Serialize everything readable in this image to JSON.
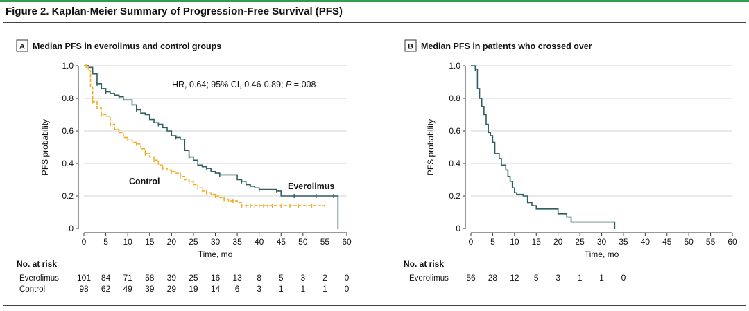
{
  "figure_title": "Figure 2. Kaplan-Meier Summary of Progression-Free Survival (PFS)",
  "colors": {
    "header_green": "#2f9e4f",
    "everolimus": "#2e5f5e",
    "control": "#f0ad28",
    "grid": "#d3d3d3"
  },
  "chart_data": [
    {
      "type": "line",
      "panel_letter": "A",
      "title": "Median PFS in everolimus and control groups",
      "xlabel": "Time, mo",
      "ylabel": "PFS probability",
      "xlim": [
        0,
        60
      ],
      "ylim": [
        0,
        1.0
      ],
      "x_ticks": [
        0,
        5,
        10,
        15,
        20,
        25,
        30,
        35,
        40,
        45,
        50,
        55,
        60
      ],
      "x_tick_labels": [
        "0",
        "5",
        "10",
        "15",
        "20",
        "25",
        "30",
        "35",
        "40",
        "45",
        "50",
        "55",
        "60"
      ],
      "y_ticks": [
        0,
        0.2,
        0.4,
        0.6,
        0.8,
        1.0
      ],
      "y_tick_labels": [
        "0",
        "0.2",
        "0.4",
        "0.6",
        "0.8",
        "1.0"
      ],
      "grid": true,
      "annotation": {
        "prefix": "HR, 0.64; 95% CI, 0.46-0.89; ",
        "p_label": "P",
        "suffix": " =.008"
      },
      "series": [
        {
          "name": "Everolimus",
          "style": "solid",
          "x": [
            0,
            1,
            2,
            3,
            4,
            5,
            6,
            7,
            8,
            9,
            11,
            12,
            13,
            14,
            15,
            16,
            17,
            18,
            19,
            20,
            21,
            22,
            23,
            24,
            25,
            26,
            27,
            28,
            29,
            30,
            31,
            35,
            36,
            37,
            38,
            39,
            40,
            42,
            43,
            44,
            45,
            46,
            47,
            48,
            52,
            53,
            54,
            55,
            56,
            57,
            58,
            58.001
          ],
          "y": [
            1.0,
            0.99,
            0.95,
            0.89,
            0.86,
            0.84,
            0.83,
            0.82,
            0.81,
            0.79,
            0.76,
            0.73,
            0.71,
            0.7,
            0.67,
            0.65,
            0.64,
            0.62,
            0.6,
            0.57,
            0.56,
            0.55,
            0.48,
            0.44,
            0.42,
            0.39,
            0.38,
            0.37,
            0.35,
            0.34,
            0.33,
            0.3,
            0.29,
            0.27,
            0.26,
            0.25,
            0.24,
            0.24,
            0.24,
            0.23,
            0.2,
            0.2,
            0.2,
            0.2,
            0.2,
            0.2,
            0.2,
            0.2,
            0.2,
            0.2,
            0.2,
            0.0
          ],
          "censor_x": [
            1,
            3,
            5,
            8,
            12,
            17,
            21,
            24,
            28,
            31,
            36,
            40,
            44,
            48,
            53,
            57
          ]
        },
        {
          "name": "Control",
          "style": "dashed",
          "x": [
            0,
            1,
            1.5,
            2,
            3,
            4,
            5,
            6,
            7,
            8,
            9,
            10,
            11,
            12,
            13,
            14,
            15,
            16,
            17,
            18,
            19,
            20,
            21,
            22,
            23,
            24,
            25,
            26,
            27,
            28,
            29,
            30,
            31,
            32,
            33,
            34,
            35,
            36,
            37,
            40,
            45,
            50,
            55
          ],
          "y": [
            1.0,
            0.97,
            0.87,
            0.78,
            0.74,
            0.7,
            0.69,
            0.64,
            0.61,
            0.59,
            0.56,
            0.55,
            0.53,
            0.52,
            0.49,
            0.46,
            0.44,
            0.42,
            0.39,
            0.37,
            0.36,
            0.35,
            0.34,
            0.32,
            0.3,
            0.29,
            0.27,
            0.25,
            0.23,
            0.22,
            0.21,
            0.2,
            0.19,
            0.18,
            0.17,
            0.17,
            0.16,
            0.14,
            0.14,
            0.14,
            0.14,
            0.14,
            0.14
          ],
          "censor_x": [
            0.5,
            2,
            4,
            6,
            8,
            10,
            12,
            14,
            16,
            18,
            20,
            22,
            24,
            26,
            28,
            30,
            32,
            34,
            36,
            37,
            38,
            39,
            40,
            41,
            42,
            43,
            45,
            47,
            49,
            52,
            55
          ]
        }
      ],
      "series_labels": [
        "Control",
        "Everolimus"
      ],
      "risk_table": {
        "header": "No. at risk",
        "rows": [
          {
            "label": "Everolimus",
            "values": [
              "101",
              "84",
              "71",
              "58",
              "39",
              "25",
              "16",
              "13",
              "8",
              "5",
              "3",
              "2",
              "0"
            ]
          },
          {
            "label": "Control",
            "values": [
              "98",
              "62",
              "49",
              "39",
              "29",
              "19",
              "14",
              "6",
              "3",
              "1",
              "1",
              "1",
              "0"
            ]
          }
        ]
      }
    },
    {
      "type": "line",
      "panel_letter": "B",
      "title": "Median PFS in patients who crossed over",
      "xlabel": "Time, mo",
      "ylabel": "PFS probability",
      "xlim": [
        0,
        60
      ],
      "ylim": [
        0,
        1.0
      ],
      "x_ticks": [
        0,
        5,
        10,
        15,
        20,
        25,
        30,
        35,
        40,
        45,
        50,
        55,
        60
      ],
      "x_tick_labels": [
        "0",
        "5",
        "10",
        "15",
        "20",
        "25",
        "30",
        "35",
        "40",
        "45",
        "50",
        "55",
        "60"
      ],
      "y_ticks": [
        0,
        0.2,
        0.4,
        0.6,
        0.8,
        1.0
      ],
      "y_tick_labels": [
        "0",
        "0.2",
        "0.4",
        "0.6",
        "0.8",
        "1.0"
      ],
      "grid": true,
      "series": [
        {
          "name": "Everolimus",
          "style": "solid",
          "x": [
            0,
            1,
            1.5,
            2,
            2.5,
            3,
            3.5,
            4,
            4.5,
            5,
            5.5,
            6,
            6.5,
            7,
            8,
            8.5,
            9,
            9.5,
            10,
            10.5,
            11,
            12,
            13,
            14,
            15,
            16,
            17,
            18,
            20,
            22,
            23,
            24,
            26,
            28,
            30,
            32,
            33,
            33.001
          ],
          "y": [
            1.0,
            0.98,
            0.86,
            0.8,
            0.75,
            0.7,
            0.64,
            0.59,
            0.57,
            0.53,
            0.46,
            0.46,
            0.43,
            0.39,
            0.36,
            0.32,
            0.29,
            0.25,
            0.22,
            0.21,
            0.21,
            0.2,
            0.16,
            0.14,
            0.12,
            0.12,
            0.12,
            0.12,
            0.09,
            0.07,
            0.04,
            0.04,
            0.04,
            0.04,
            0.04,
            0.04,
            0.04,
            0.0
          ],
          "censor_x": [
            1
          ]
        }
      ],
      "risk_table": {
        "header": "No. at risk",
        "rows": [
          {
            "label": "Everolimus",
            "values": [
              "56",
              "28",
              "12",
              "5",
              "3",
              "1",
              "1",
              "0"
            ]
          }
        ]
      }
    }
  ]
}
